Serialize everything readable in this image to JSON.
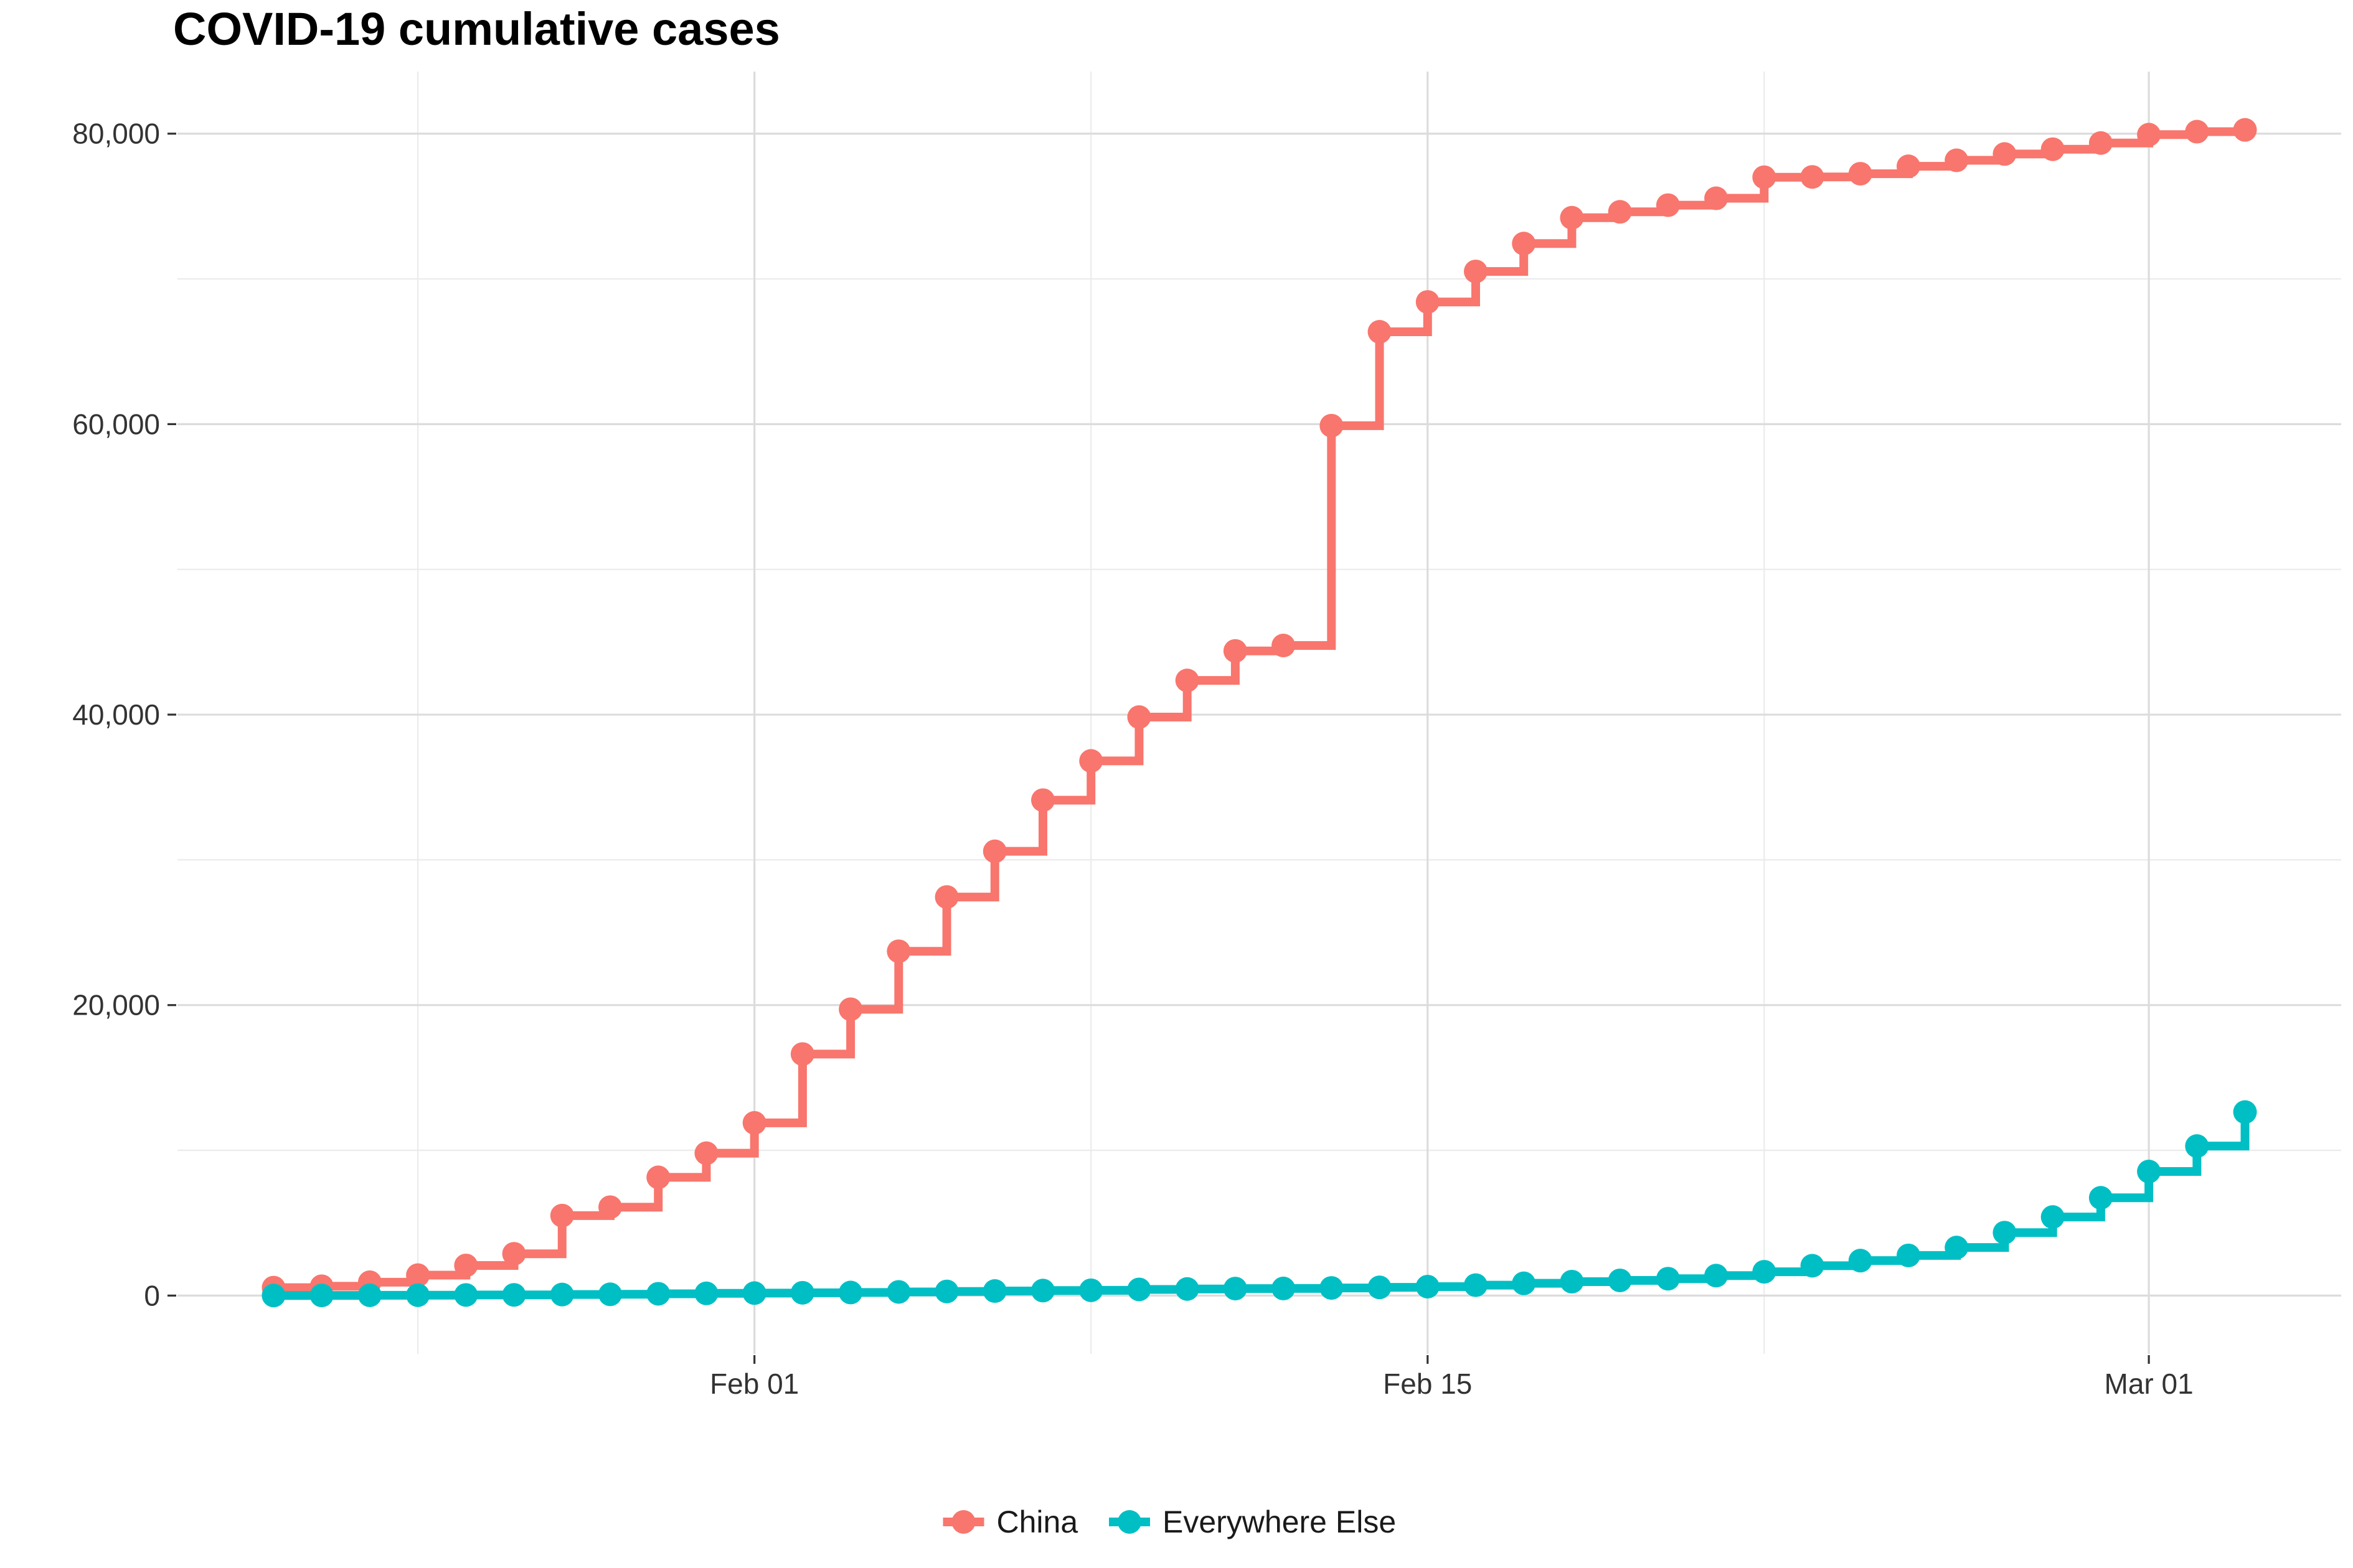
{
  "chart_data": {
    "type": "line",
    "step": true,
    "markers": true,
    "title": "COVID-19 cumulative cases",
    "xlabel": "",
    "ylabel": "",
    "x": [
      "2020-01-22",
      "2020-01-23",
      "2020-01-24",
      "2020-01-25",
      "2020-01-26",
      "2020-01-27",
      "2020-01-28",
      "2020-01-29",
      "2020-01-30",
      "2020-01-31",
      "2020-02-01",
      "2020-02-02",
      "2020-02-03",
      "2020-02-04",
      "2020-02-05",
      "2020-02-06",
      "2020-02-07",
      "2020-02-08",
      "2020-02-09",
      "2020-02-10",
      "2020-02-11",
      "2020-02-12",
      "2020-02-13",
      "2020-02-14",
      "2020-02-15",
      "2020-02-16",
      "2020-02-17",
      "2020-02-18",
      "2020-02-19",
      "2020-02-20",
      "2020-02-21",
      "2020-02-22",
      "2020-02-23",
      "2020-02-24",
      "2020-02-25",
      "2020-02-26",
      "2020-02-27",
      "2020-02-28",
      "2020-02-29",
      "2020-03-01",
      "2020-03-02",
      "2020-03-03"
    ],
    "series": [
      {
        "name": "China",
        "color": "#F8766D",
        "values": [
          548,
          643,
          920,
          1406,
          2075,
          2877,
          5509,
          6087,
          8141,
          9802,
          11891,
          16630,
          19716,
          23707,
          27440,
          30587,
          34110,
          36814,
          39829,
          42354,
          44386,
          44759,
          59895,
          66358,
          68413,
          70513,
          72434,
          74211,
          74619,
          75077,
          75550,
          77001,
          77022,
          77241,
          77754,
          78166,
          78600,
          78928,
          79356,
          79932,
          80136,
          80261
        ]
      },
      {
        "name": "Everywhere Else",
        "color": "#00BFC4",
        "values": [
          7,
          11,
          21,
          28,
          43,
          50,
          74,
          89,
          124,
          153,
          171,
          194,
          212,
          254,
          285,
          314,
          346,
          366,
          425,
          455,
          483,
          491,
          525,
          565,
          618,
          718,
          844,
          959,
          1045,
          1163,
          1376,
          1640,
          2057,
          2409,
          2765,
          3310,
          4334,
          5410,
          6732,
          8542,
          10294,
          12637
        ]
      }
    ],
    "x_ticks": [
      {
        "date": "2020-02-01",
        "label": "Feb 01"
      },
      {
        "date": "2020-02-15",
        "label": "Feb 15"
      },
      {
        "date": "2020-03-01",
        "label": "Mar 01"
      }
    ],
    "x_minor_ticks": [
      "2020-01-25",
      "2020-02-08",
      "2020-02-22"
    ],
    "y_ticks": [
      {
        "value": 0,
        "label": "0"
      },
      {
        "value": 20000,
        "label": "20,000"
      },
      {
        "value": 40000,
        "label": "40,000"
      },
      {
        "value": 60000,
        "label": "60,000"
      },
      {
        "value": 80000,
        "label": "80,000"
      }
    ],
    "y_minor_ticks": [
      10000,
      30000,
      50000,
      70000
    ],
    "xlim": [
      "2020-01-20",
      "2020-03-05"
    ],
    "ylim": [
      -4013,
      84274
    ],
    "grid": true,
    "legend": {
      "placement": "bottom",
      "entries": [
        "China",
        "Everywhere Else"
      ]
    }
  }
}
